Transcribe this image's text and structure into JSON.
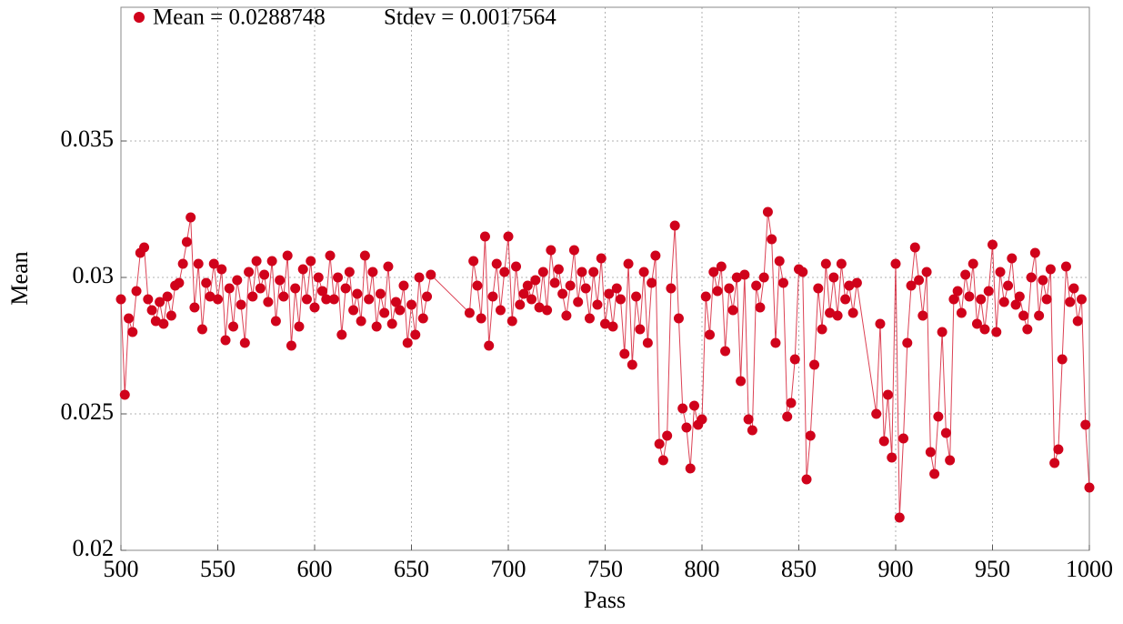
{
  "chart_data": {
    "type": "line",
    "xlabel": "Pass",
    "ylabel": "Mean",
    "annotation": "Stdev = 0.0017564",
    "xlim": [
      500,
      1000
    ],
    "ylim": [
      0.02,
      0.0399
    ],
    "xticks": [
      500,
      550,
      600,
      650,
      700,
      750,
      800,
      850,
      900,
      950,
      1000
    ],
    "yticks": [
      0.02,
      0.025,
      0.03,
      0.035
    ],
    "grid": true,
    "legend": "upper left",
    "x": [
      500,
      502,
      504,
      506,
      508,
      510,
      512,
      514,
      516,
      518,
      520,
      522,
      524,
      526,
      528,
      530,
      532,
      534,
      536,
      538,
      540,
      542,
      544,
      546,
      548,
      550,
      552,
      554,
      556,
      558,
      560,
      562,
      564,
      566,
      568,
      570,
      572,
      574,
      576,
      578,
      580,
      582,
      584,
      586,
      588,
      590,
      592,
      594,
      596,
      598,
      600,
      602,
      604,
      606,
      608,
      610,
      612,
      614,
      616,
      618,
      620,
      622,
      624,
      626,
      628,
      630,
      632,
      634,
      636,
      638,
      640,
      642,
      644,
      646,
      648,
      650,
      652,
      654,
      656,
      658,
      660,
      680,
      682,
      684,
      686,
      688,
      690,
      692,
      694,
      696,
      698,
      700,
      702,
      704,
      706,
      708,
      710,
      712,
      714,
      716,
      718,
      720,
      722,
      724,
      726,
      728,
      730,
      732,
      734,
      736,
      738,
      740,
      742,
      744,
      746,
      748,
      750,
      752,
      754,
      756,
      758,
      760,
      762,
      764,
      766,
      768,
      770,
      772,
      774,
      776,
      778,
      780,
      782,
      784,
      786,
      788,
      790,
      792,
      794,
      796,
      798,
      800,
      802,
      804,
      806,
      808,
      810,
      812,
      814,
      816,
      818,
      820,
      822,
      824,
      826,
      828,
      830,
      832,
      834,
      836,
      838,
      840,
      842,
      844,
      846,
      848,
      850,
      852,
      854,
      856,
      858,
      860,
      862,
      864,
      866,
      868,
      870,
      872,
      874,
      876,
      878,
      880,
      890,
      892,
      894,
      896,
      898,
      900,
      902,
      904,
      906,
      908,
      910,
      912,
      914,
      916,
      918,
      920,
      922,
      924,
      926,
      928,
      930,
      932,
      934,
      936,
      938,
      940,
      942,
      944,
      946,
      948,
      950,
      952,
      954,
      956,
      958,
      960,
      962,
      964,
      966,
      968,
      970,
      972,
      974,
      976,
      978,
      980,
      982,
      984,
      986,
      988,
      990,
      992,
      994,
      996,
      998,
      1000
    ],
    "series": [
      {
        "name": "Mean = 0.0288748",
        "color": "#d0021b",
        "values": [
          0.0292,
          0.0257,
          0.0285,
          0.028,
          0.0295,
          0.0309,
          0.0311,
          0.0292,
          0.0288,
          0.0284,
          0.0291,
          0.0283,
          0.0293,
          0.0286,
          0.0297,
          0.0298,
          0.0305,
          0.0313,
          0.0322,
          0.0289,
          0.0305,
          0.0281,
          0.0298,
          0.0293,
          0.0305,
          0.0292,
          0.0303,
          0.0277,
          0.0296,
          0.0282,
          0.0299,
          0.029,
          0.0276,
          0.0302,
          0.0293,
          0.0306,
          0.0296,
          0.0301,
          0.0291,
          0.0306,
          0.0284,
          0.0299,
          0.0293,
          0.0308,
          0.0275,
          0.0296,
          0.0282,
          0.0303,
          0.0292,
          0.0306,
          0.0289,
          0.03,
          0.0295,
          0.0292,
          0.0308,
          0.0292,
          0.03,
          0.0279,
          0.0296,
          0.0302,
          0.0288,
          0.0294,
          0.0284,
          0.0308,
          0.0292,
          0.0302,
          0.0282,
          0.0294,
          0.0287,
          0.0304,
          0.0283,
          0.0291,
          0.0288,
          0.0297,
          0.0276,
          0.029,
          0.0279,
          0.03,
          0.0285,
          0.0293,
          0.0301,
          0.0287,
          0.0306,
          0.0297,
          0.0285,
          0.0315,
          0.0275,
          0.0293,
          0.0305,
          0.0288,
          0.0302,
          0.0315,
          0.0284,
          0.0304,
          0.029,
          0.0294,
          0.0297,
          0.0292,
          0.0299,
          0.0289,
          0.0302,
          0.0288,
          0.031,
          0.0298,
          0.0303,
          0.0294,
          0.0286,
          0.0297,
          0.031,
          0.0291,
          0.0302,
          0.0296,
          0.0285,
          0.0302,
          0.029,
          0.0307,
          0.0283,
          0.0294,
          0.0282,
          0.0296,
          0.0292,
          0.0272,
          0.0305,
          0.0268,
          0.0293,
          0.0281,
          0.0302,
          0.0276,
          0.0298,
          0.0308,
          0.0239,
          0.0233,
          0.0242,
          0.0296,
          0.0319,
          0.0285,
          0.0252,
          0.0245,
          0.023,
          0.0253,
          0.0246,
          0.0248,
          0.0293,
          0.0279,
          0.0302,
          0.0295,
          0.0304,
          0.0273,
          0.0296,
          0.0288,
          0.03,
          0.0262,
          0.0301,
          0.0248,
          0.0244,
          0.0297,
          0.0289,
          0.03,
          0.0324,
          0.0314,
          0.0276,
          0.0306,
          0.0298,
          0.0249,
          0.0254,
          0.027,
          0.0303,
          0.0302,
          0.0226,
          0.0242,
          0.0268,
          0.0296,
          0.0281,
          0.0305,
          0.0287,
          0.03,
          0.0286,
          0.0305,
          0.0292,
          0.0297,
          0.0287,
          0.0298,
          0.025,
          0.0283,
          0.024,
          0.0257,
          0.0234,
          0.0305,
          0.0212,
          0.0241,
          0.0276,
          0.0297,
          0.0311,
          0.0299,
          0.0286,
          0.0302,
          0.0236,
          0.0228,
          0.0249,
          0.028,
          0.0243,
          0.0233,
          0.0292,
          0.0295,
          0.0287,
          0.0301,
          0.0293,
          0.0305,
          0.0283,
          0.0292,
          0.0281,
          0.0295,
          0.0312,
          0.028,
          0.0302,
          0.0291,
          0.0297,
          0.0307,
          0.029,
          0.0293,
          0.0286,
          0.0281,
          0.03,
          0.0309,
          0.0286,
          0.0299,
          0.0292,
          0.0303,
          0.0232,
          0.0237,
          0.027,
          0.0304,
          0.0291,
          0.0296,
          0.0284,
          0.0292,
          0.0246,
          0.0223
        ]
      }
    ]
  }
}
